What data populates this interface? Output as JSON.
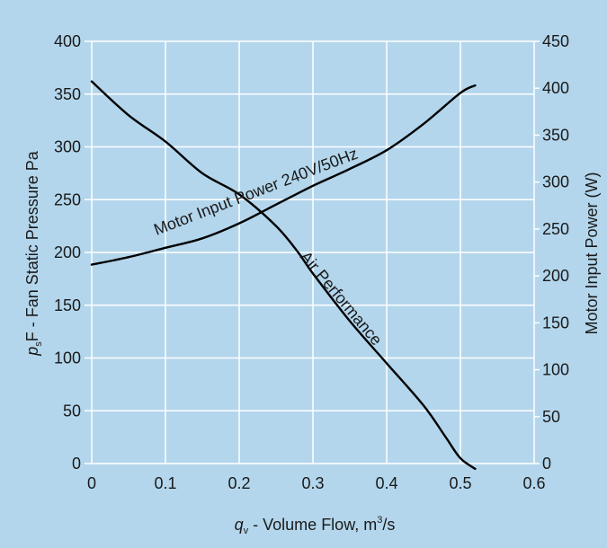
{
  "colors": {
    "background": "#b3d6ec",
    "grid": "#ffffff",
    "line": "#000000",
    "text": "#1a1a1a"
  },
  "chart_data": {
    "type": "line",
    "grid": true,
    "xlabel": {
      "symbol": "q",
      "subscript": "v",
      "text": " - Volume Flow, m",
      "sup": "3",
      "suffix": "/s"
    },
    "ylabel_left": {
      "symbol": "p",
      "subscript": "s",
      "text": "F - Fan Static Pressure  Pa"
    },
    "ylabel_right": "Motor Input Power (W)",
    "xlim": [
      0,
      0.6
    ],
    "ylim_left": [
      0,
      400
    ],
    "ylim_right": [
      0,
      450
    ],
    "x_ticks": [
      "0",
      "0.1",
      "0.2",
      "0.3",
      "0.4",
      "0.5",
      "0.6"
    ],
    "y_left_ticks": [
      "0",
      "50",
      "100",
      "150",
      "200",
      "250",
      "300",
      "350",
      "400"
    ],
    "y_right_ticks": [
      "0",
      "50",
      "100",
      "150",
      "200",
      "250",
      "300",
      "350",
      "400",
      "450"
    ],
    "series": [
      {
        "name": "Air Performance",
        "axis": "left",
        "x": [
          0,
          0.05,
          0.1,
          0.15,
          0.2,
          0.25,
          0.28,
          0.3,
          0.35,
          0.4,
          0.45,
          0.48,
          0.5,
          0.52
        ],
        "y": [
          362,
          330,
          305,
          275,
          255,
          225,
          200,
          180,
          135,
          95,
          55,
          25,
          5,
          -5
        ]
      },
      {
        "name": "Motor Input Power 240V/50Hz",
        "axis": "right",
        "x": [
          0,
          0.05,
          0.1,
          0.15,
          0.2,
          0.25,
          0.3,
          0.35,
          0.4,
          0.45,
          0.5,
          0.52
        ],
        "y": [
          212,
          220,
          230,
          240,
          256,
          276,
          296,
          314,
          334,
          362,
          395,
          403
        ]
      }
    ]
  }
}
